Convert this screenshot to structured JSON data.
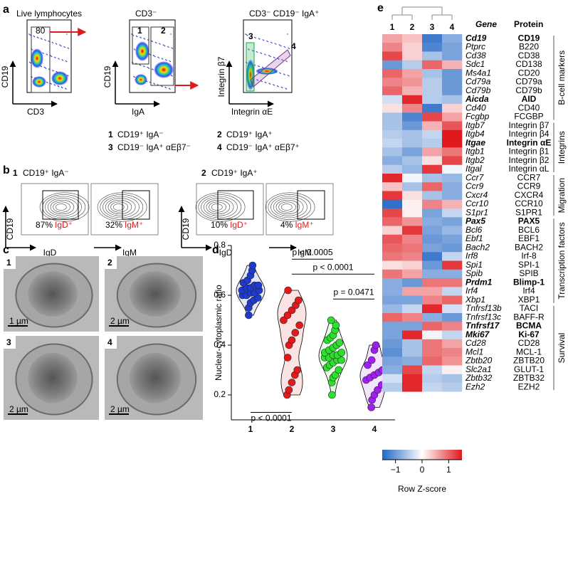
{
  "panel_labels": [
    "a",
    "b",
    "c",
    "d",
    "e"
  ],
  "panel_a": {
    "plots": [
      {
        "title": "Live lymphocytes",
        "x_label": "CD3",
        "y_label": "CD19",
        "gates": [
          "80"
        ]
      },
      {
        "title": "CD3⁻",
        "x_label": "IgA",
        "y_label": "CD19",
        "gates": [
          "1",
          "2"
        ]
      },
      {
        "title": "CD3⁻ CD19⁻ IgA⁺",
        "x_label": "Integrin αE",
        "y_label": "Integrin β7",
        "gates": [
          "3",
          "4"
        ]
      }
    ],
    "legend": [
      {
        "number": "1",
        "label": "CD19⁺ IgA⁻",
        "color": "#1f3a93"
      },
      {
        "number": "2",
        "label": "CD19⁺ IgA⁺",
        "color": "#e31a1c"
      },
      {
        "number": "3",
        "label": "CD19⁻ IgA⁺ αEβ7⁻",
        "color": "#1aaa4b"
      },
      {
        "number": "4",
        "label": "CD19⁻ IgA⁺ αEβ7⁺",
        "color": "#7b3294"
      }
    ]
  },
  "panel_b": {
    "groups": [
      {
        "number": "1",
        "label": "CD19⁺ IgA⁻",
        "color": "#1f3a93",
        "y_label": "CD19",
        "plots": [
          {
            "x_label": "IgD",
            "percent": "87%",
            "gate": "IgD⁺"
          },
          {
            "x_label": "IgM",
            "percent": "32%",
            "gate": "IgM⁺"
          }
        ]
      },
      {
        "number": "2",
        "label": "CD19⁺ IgA⁺",
        "color": "#e31a1c",
        "y_label": "CD19",
        "plots": [
          {
            "x_label": "IgD",
            "percent": "10%",
            "gate": "IgD⁺"
          },
          {
            "x_label": "IgM",
            "percent": "4%",
            "gate": "IgM⁺"
          }
        ]
      }
    ]
  },
  "panel_c": {
    "images": [
      {
        "number": "1",
        "color": "#1f3a93",
        "scale_bar": "1 µm"
      },
      {
        "number": "2",
        "color": "#e31a1c",
        "scale_bar": "2 µm"
      },
      {
        "number": "3",
        "color": "#1aaa4b",
        "scale_bar": "2 µm"
      },
      {
        "number": "4",
        "color": "#7b3294",
        "scale_bar": "2 µm"
      }
    ]
  },
  "chart_data": [
    {
      "type": "violin",
      "y_label": "Nuclear-cytoplasmic ratio",
      "categories": [
        "1",
        "2",
        "3",
        "4"
      ],
      "colors": [
        "#1f3ad0",
        "#e31a1c",
        "#2ee02e",
        "#a020f0"
      ],
      "values": [
        [
          0.52,
          0.55,
          0.57,
          0.58,
          0.59,
          0.6,
          0.6,
          0.61,
          0.61,
          0.62,
          0.62,
          0.63,
          0.63,
          0.64,
          0.64,
          0.65,
          0.66,
          0.68,
          0.7,
          0.72
        ],
        [
          0.2,
          0.22,
          0.25,
          0.28,
          0.3,
          0.35,
          0.4,
          0.42,
          0.45,
          0.48,
          0.5,
          0.52,
          0.54,
          0.56,
          0.58,
          0.62
        ],
        [
          0.2,
          0.25,
          0.27,
          0.28,
          0.3,
          0.31,
          0.32,
          0.33,
          0.34,
          0.34,
          0.35,
          0.35,
          0.36,
          0.36,
          0.37,
          0.37,
          0.38,
          0.39,
          0.4,
          0.41,
          0.42,
          0.43,
          0.44,
          0.46,
          0.48,
          0.5
        ],
        [
          0.15,
          0.18,
          0.2,
          0.22,
          0.24,
          0.26,
          0.27,
          0.28,
          0.29,
          0.3,
          0.32,
          0.34,
          0.38,
          0.4
        ]
      ],
      "ylim": [
        0.1,
        0.8
      ],
      "yticks": [
        0.2,
        0.4,
        0.6,
        0.8
      ],
      "annotations": [
        "p < 0.0005",
        "p < 0.0001",
        "p = 0.0471",
        "p < 0.0001"
      ]
    },
    {
      "type": "heatmap",
      "columns": [
        "1",
        "2",
        "3",
        "4"
      ],
      "column_colors": [
        "#1f3a93",
        "#e31a1c",
        "#1aaa4b",
        "#7b3294"
      ],
      "gene_header": "Gene",
      "protein_header": "Protein",
      "genes": [
        "Cd19",
        "Ptprc",
        "Cd38",
        "Sdc1",
        "Ms4a1",
        "Cd79a",
        "Cd79b",
        "Aicda",
        "Cd40",
        "Fcgbp",
        "Itgb7",
        "Itgb4",
        "Itgae",
        "Itgb1",
        "Itgb2",
        "Itgal",
        "Ccr7",
        "Ccr9",
        "Cxcr4",
        "Ccr10",
        "S1pr1",
        "Pax5",
        "Bcl6",
        "Ebf1",
        "Bach2",
        "Irf8",
        "Spi1",
        "Spib",
        "Prdm1",
        "Irf4",
        "Xbp1",
        "Tnfrsf13b",
        "Tnfrsf13c",
        "Tnfrsf17",
        "Mki67",
        "Cd28",
        "Mcl1",
        "Zbtb20",
        "Slc2a1",
        "Zbtb32",
        "Ezh2"
      ],
      "proteins": [
        "CD19",
        "B220",
        "CD38",
        "CD138",
        "CD20",
        "CD79a",
        "CD79b",
        "AID",
        "CD40",
        "FCGBP",
        "Integrin β7",
        "Integrin β4",
        "Integrin αE",
        "Integrin β1",
        "Integrin β2",
        "Integrin αL",
        "CCR7",
        "CCR9",
        "CXCR4",
        "CCR10",
        "S1PR1",
        "PAX5",
        "BCL6",
        "EBF1",
        "BACH2",
        "Irf-8",
        "SPI-1",
        "SPIB",
        "Blimp-1",
        "Irf4",
        "XBP1",
        "TACI",
        "BAFF-R",
        "BCMA",
        "Ki-67",
        "CD28",
        "MCL-1",
        "ZBTB20",
        "GLUT-1",
        "ZBTB32",
        "EZH2"
      ],
      "row_colors": [
        "#2e5aa8",
        "#000000",
        "#000000",
        "#000000",
        "#000000",
        "#000000",
        "#000000",
        "#2e5aa8",
        "#000000",
        "#000000",
        "#000000",
        "#000000",
        "#e8141c",
        "#000000",
        "#000000",
        "#000000",
        "#000000",
        "#000000",
        "#000000",
        "#000000",
        "#000000",
        "#2e5aa8",
        "#000000",
        "#000000",
        "#000000",
        "#000000",
        "#000000",
        "#000000",
        "#e8141c",
        "#000000",
        "#000000",
        "#000000",
        "#000000",
        "#e8141c",
        "#2e5aa8",
        "#000000",
        "#000000",
        "#000000",
        "#000000",
        "#000000",
        "#000000"
      ],
      "groups": [
        "B-cell markers",
        "Integrins",
        "Migration",
        "Transcription factors",
        "Survival"
      ],
      "values": [
        [
          0.6,
          0.4,
          -1.3,
          -0.8
        ],
        [
          0.8,
          0.3,
          -1.2,
          -0.9
        ],
        [
          1.2,
          0.3,
          -0.6,
          -0.9
        ],
        [
          -1.0,
          -0.5,
          1.0,
          0.5
        ],
        [
          1.0,
          0.6,
          -0.6,
          -1.0
        ],
        [
          0.8,
          0.7,
          -0.5,
          -1.0
        ],
        [
          1.0,
          0.5,
          -0.5,
          -1.0
        ],
        [
          -0.3,
          1.4,
          -0.5,
          -0.6
        ],
        [
          0.2,
          0.8,
          -1.3,
          0.3
        ],
        [
          -0.6,
          -1.2,
          1.2,
          0.6
        ],
        [
          -0.6,
          -1.0,
          0.5,
          1.1
        ],
        [
          -0.5,
          -0.6,
          -0.4,
          1.5
        ],
        [
          -0.4,
          -0.6,
          -0.5,
          1.5
        ],
        [
          -0.6,
          -0.9,
          0.6,
          0.9
        ],
        [
          -0.8,
          -0.6,
          0.2,
          1.2
        ],
        [
          -0.5,
          -0.7,
          1.3,
          -0.1
        ],
        [
          1.4,
          -0.1,
          -0.6,
          -0.7
        ],
        [
          0.4,
          -0.6,
          1.0,
          -0.8
        ],
        [
          1.3,
          0.2,
          -0.6,
          -0.8
        ],
        [
          -1.4,
          0.1,
          0.8,
          0.5
        ],
        [
          1.2,
          0.1,
          -0.9,
          -0.4
        ],
        [
          1.0,
          0.7,
          -0.8,
          -0.9
        ],
        [
          0.3,
          1.3,
          -0.9,
          -0.7
        ],
        [
          1.1,
          0.8,
          -1.0,
          -0.9
        ],
        [
          1.0,
          0.9,
          -0.9,
          -1.0
        ],
        [
          0.9,
          0.8,
          -1.3,
          -0.4
        ],
        [
          0.2,
          0.3,
          -1.0,
          1.3
        ],
        [
          0.9,
          0.6,
          -0.8,
          -0.8
        ],
        [
          -0.8,
          -1.0,
          0.9,
          0.9
        ],
        [
          -0.8,
          0.6,
          0.6,
          -0.4
        ],
        [
          -0.9,
          -0.9,
          0.8,
          1.0
        ],
        [
          -0.7,
          -0.4,
          1.4,
          -0.3
        ],
        [
          1.0,
          0.8,
          -0.8,
          -1.0
        ],
        [
          -0.9,
          -0.9,
          1.0,
          0.8
        ],
        [
          -0.9,
          1.4,
          -0.1,
          -0.4
        ],
        [
          -1.0,
          -0.6,
          0.9,
          0.6
        ],
        [
          -1.1,
          -0.6,
          0.9,
          0.8
        ],
        [
          -0.9,
          -0.8,
          1.0,
          0.7
        ],
        [
          -0.8,
          1.2,
          -0.4,
          0.1
        ],
        [
          -0.3,
          1.4,
          -0.5,
          -0.6
        ],
        [
          -0.5,
          1.4,
          -0.4,
          -0.5
        ]
      ],
      "colorscale": [
        "#2166c4",
        "#ffffff",
        "#e0191e"
      ],
      "zlim": [
        -1.5,
        1.5
      ],
      "zticks": [
        {
          "value": -1,
          "label": "−1"
        },
        0,
        1
      ],
      "z_label": "Row Z-score"
    }
  ]
}
